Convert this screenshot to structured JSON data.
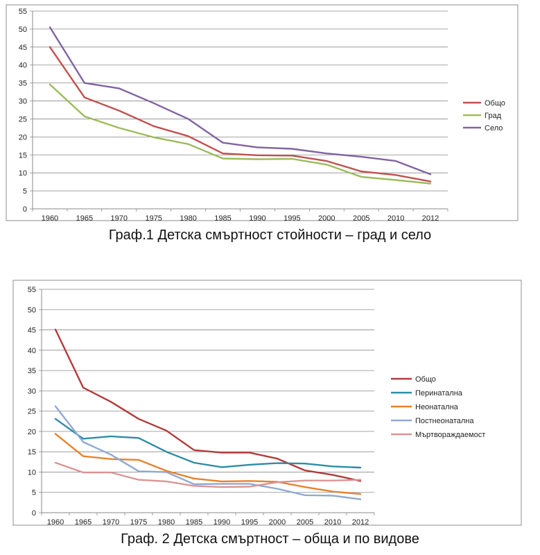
{
  "chart_data": [
    {
      "type": "line",
      "title": "Граф.1  Детска смъртност стойности – град и село",
      "xlabel": "",
      "ylabel": "",
      "ylim": [
        0,
        55
      ],
      "yticks": [
        0,
        5,
        10,
        15,
        20,
        25,
        30,
        35,
        40,
        45,
        50,
        55
      ],
      "x": [
        "1960",
        "1965",
        "1970",
        "1975",
        "1980",
        "1985",
        "1990",
        "1995",
        "2000",
        "2005",
        "2010",
        "2012"
      ],
      "grid": true,
      "legend": "right",
      "series": [
        {
          "name": "Общо",
          "color": "#c0504d",
          "values": [
            45.0,
            31.0,
            27.3,
            23.0,
            20.2,
            15.4,
            14.9,
            14.8,
            13.3,
            10.4,
            9.4,
            7.6
          ]
        },
        {
          "name": "Град",
          "color": "#9bbb59",
          "values": [
            34.6,
            25.7,
            22.5,
            19.9,
            18.0,
            14.0,
            13.8,
            13.9,
            12.3,
            8.9,
            8.0,
            7.0
          ]
        },
        {
          "name": "Село",
          "color": "#8064a2",
          "values": [
            50.5,
            35.0,
            33.5,
            29.4,
            25.0,
            18.4,
            17.1,
            16.7,
            15.4,
            14.5,
            13.3,
            9.6
          ]
        }
      ]
    },
    {
      "type": "line",
      "title": "Граф. 2 Детска смъртност – обща и по видове",
      "xlabel": "",
      "ylabel": "",
      "ylim": [
        0,
        55
      ],
      "yticks": [
        0,
        5,
        10,
        15,
        20,
        25,
        30,
        35,
        40,
        45,
        50,
        55
      ],
      "x": [
        "1960",
        "1965",
        "1970",
        "1975",
        "1980",
        "1985",
        "1990",
        "1995",
        "2000",
        "2005",
        "2010",
        "2012"
      ],
      "grid": true,
      "legend": "right",
      "series": [
        {
          "name": "Общо",
          "color": "#b33a3a",
          "values": [
            45.1,
            30.8,
            27.3,
            23.1,
            20.2,
            15.4,
            14.8,
            14.8,
            13.3,
            10.4,
            9.3,
            7.8
          ]
        },
        {
          "name": "Перинатална",
          "color": "#2f8ca6",
          "values": [
            23.1,
            18.2,
            18.8,
            18.4,
            15.0,
            12.3,
            11.2,
            11.8,
            12.2,
            12.1,
            11.4,
            11.1
          ]
        },
        {
          "name": "Неонатална",
          "color": "#e8822c",
          "values": [
            19.4,
            13.9,
            13.2,
            13.0,
            10.3,
            8.4,
            7.7,
            7.8,
            7.6,
            6.3,
            5.2,
            4.6
          ]
        },
        {
          "name": "Постнеонатална",
          "color": "#8fa9d2",
          "values": [
            26.2,
            17.4,
            14.3,
            10.2,
            10.0,
            7.0,
            7.1,
            7.1,
            5.9,
            4.3,
            4.2,
            3.3
          ]
        },
        {
          "name": "Мъртвораждаемост",
          "color": "#d99594",
          "values": [
            12.3,
            9.9,
            9.9,
            8.1,
            7.7,
            6.6,
            6.3,
            6.4,
            7.5,
            7.9,
            7.9,
            8.1
          ]
        }
      ]
    }
  ]
}
